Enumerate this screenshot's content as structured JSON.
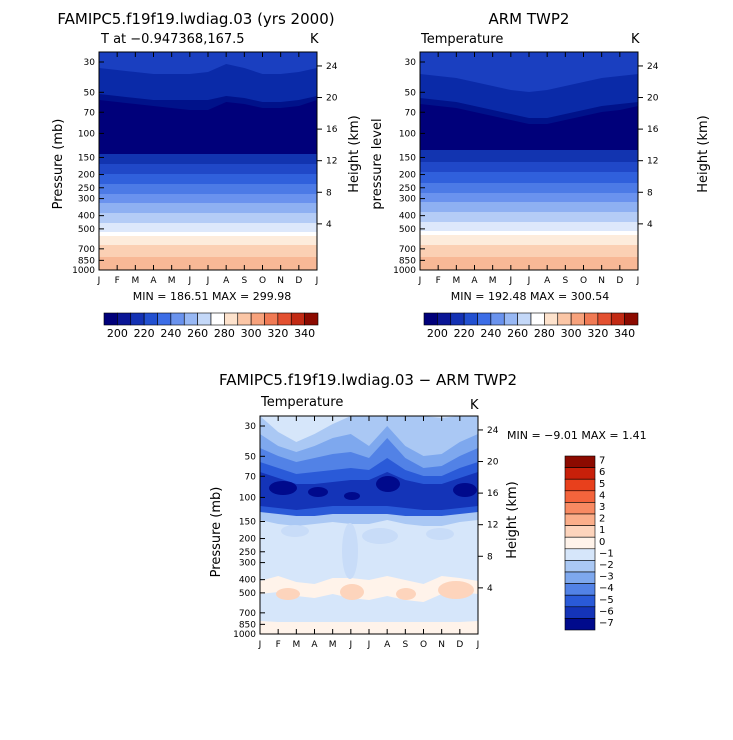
{
  "scale_a": [
    {
      "label": "200",
      "color": "#00007a"
    },
    {
      "label": "",
      "color": "#0a1696"
    },
    {
      "label": "220",
      "color": "#1432b4"
    },
    {
      "label": "",
      "color": "#2250d0"
    },
    {
      "label": "240",
      "color": "#3c6de6"
    },
    {
      "label": "",
      "color": "#6a93ee"
    },
    {
      "label": "260",
      "color": "#98b8f4"
    },
    {
      "label": "",
      "color": "#c4d8f8"
    },
    {
      "label": "280",
      "color": "#ffffff"
    },
    {
      "label": "",
      "color": "#fde2cc"
    },
    {
      "label": "300",
      "color": "#fbc6a6"
    },
    {
      "label": "",
      "color": "#f7a27c"
    },
    {
      "label": "320",
      "color": "#f07a54"
    },
    {
      "label": "",
      "color": "#e35030"
    },
    {
      "label": "340",
      "color": "#c22a14"
    },
    {
      "label": "",
      "color": "#8c0a00"
    }
  ],
  "scale_b": [
    {
      "label": "7",
      "color": "#8c0a00"
    },
    {
      "label": "6",
      "color": "#c8200a"
    },
    {
      "label": "5",
      "color": "#e8401c"
    },
    {
      "label": "4",
      "color": "#f4643c"
    },
    {
      "label": "3",
      "color": "#f88a62"
    },
    {
      "label": "2",
      "color": "#fbae8a"
    },
    {
      "label": "1",
      "color": "#fdd4bc"
    },
    {
      "label": "0",
      "color": "#fff3ea"
    },
    {
      "label": "−1",
      "color": "#d6e6fa"
    },
    {
      "label": "−2",
      "color": "#aac8f4"
    },
    {
      "label": "−3",
      "color": "#7ea8ee"
    },
    {
      "label": "−4",
      "color": "#5282e6"
    },
    {
      "label": "−5",
      "color": "#2a5ad8"
    },
    {
      "label": "−6",
      "color": "#1434b8"
    },
    {
      "label": "−7",
      "color": "#000a8c"
    }
  ],
  "chart_data": [
    {
      "type": "heatmap",
      "title": "FAMIPC5.f19f19.lwdiag.03 (yrs 2000)",
      "subtitle": "T at −0.947368,167.5",
      "unit": "K",
      "xlabel": "",
      "ylabel": "Pressure (mb)",
      "y2label": "Height (km)",
      "stats": "MIN = 186.51  MAX = 299.98",
      "min": 186.51,
      "max": 299.98,
      "months": [
        "J",
        "F",
        "M",
        "A",
        "M",
        "J",
        "J",
        "A",
        "S",
        "O",
        "N",
        "D",
        "J"
      ],
      "pressure_ticks": [
        30,
        50,
        70,
        100,
        150,
        200,
        250,
        300,
        400,
        500,
        700,
        850,
        1000
      ],
      "height_ticks": [
        24,
        20,
        16,
        12,
        8,
        4
      ],
      "level_bottoms": [
        [
          15,
          15,
          15,
          15,
          15,
          15,
          15,
          15,
          15,
          15,
          15,
          15,
          15
        ],
        [
          14,
          14,
          14,
          14,
          14,
          14,
          14,
          14,
          14,
          14,
          14,
          14,
          14
        ],
        [
          13,
          13,
          13,
          13,
          13,
          13,
          13,
          13,
          13,
          13,
          13,
          13,
          13
        ],
        [
          12,
          12,
          12,
          12,
          12,
          12,
          12,
          12,
          12,
          12,
          12,
          12,
          12
        ],
        [
          11,
          11,
          11,
          11,
          11,
          11,
          11,
          11,
          11,
          11,
          11,
          11,
          11
        ],
        [
          10,
          10,
          10,
          10,
          10,
          10,
          10,
          10,
          10,
          10,
          10,
          10,
          10
        ],
        [
          9,
          9,
          9,
          9,
          9,
          9,
          9,
          9,
          9,
          9,
          9,
          9,
          9
        ],
        [
          8,
          8,
          8,
          8,
          8,
          8,
          8,
          8,
          8,
          8,
          8,
          8,
          8
        ],
        [
          7,
          7,
          7,
          7,
          7,
          7,
          7,
          7,
          7,
          7,
          7,
          7,
          7
        ],
        [
          6,
          6,
          6,
          6,
          6,
          6,
          6,
          6,
          6,
          6,
          6,
          6,
          6
        ],
        [
          5,
          5,
          5,
          5,
          5,
          5,
          5,
          5,
          5,
          5,
          5,
          5,
          5
        ],
        [
          4,
          4,
          4,
          4,
          4,
          4,
          4,
          4,
          4,
          4,
          4,
          4,
          4
        ],
        [
          3,
          3,
          3,
          3,
          3,
          3,
          3,
          3,
          3,
          3,
          3,
          3,
          3
        ],
        [
          2,
          2,
          2,
          2,
          2,
          2,
          2,
          2,
          2,
          2,
          2,
          2,
          2
        ],
        [
          1,
          1,
          1,
          1,
          1,
          1,
          1,
          1,
          1,
          1,
          1,
          1,
          1
        ],
        [
          0,
          0,
          0,
          0,
          0,
          0,
          0,
          0,
          0,
          0,
          0,
          0,
          0
        ]
      ]
    },
    {
      "type": "heatmap",
      "title": "ARM TWP2",
      "subtitle": "Temperature",
      "unit": "K",
      "xlabel": "",
      "ylabel": "pressure level",
      "y2label": "Height (km)",
      "stats": "MIN = 192.48  MAX = 300.54",
      "min": 192.48,
      "max": 300.54,
      "months": [
        "J",
        "F",
        "M",
        "A",
        "M",
        "J",
        "J",
        "A",
        "S",
        "O",
        "N",
        "D",
        "J"
      ],
      "pressure_ticks": [
        30,
        50,
        70,
        100,
        150,
        200,
        250,
        300,
        400,
        500,
        700,
        850,
        1000
      ],
      "height_ticks": [
        24,
        20,
        16,
        12,
        8,
        4
      ]
    },
    {
      "type": "heatmap",
      "title": "FAMIPC5.f19f19.lwdiag.03 − ARM TWP2",
      "subtitle": "Temperature",
      "unit": "K",
      "xlabel": "",
      "ylabel": "Pressure (mb)",
      "y2label": "Height (km)",
      "stats": "MIN =    −9.01  MAX =    1.41",
      "min": -9.01,
      "max": 1.41,
      "months": [
        "J",
        "F",
        "M",
        "A",
        "M",
        "J",
        "J",
        "A",
        "S",
        "O",
        "N",
        "D",
        "J"
      ],
      "pressure_ticks": [
        30,
        50,
        70,
        100,
        150,
        200,
        250,
        300,
        400,
        500,
        700,
        850,
        1000
      ],
      "height_ticks": [
        24,
        20,
        16,
        12,
        8,
        4
      ]
    }
  ]
}
